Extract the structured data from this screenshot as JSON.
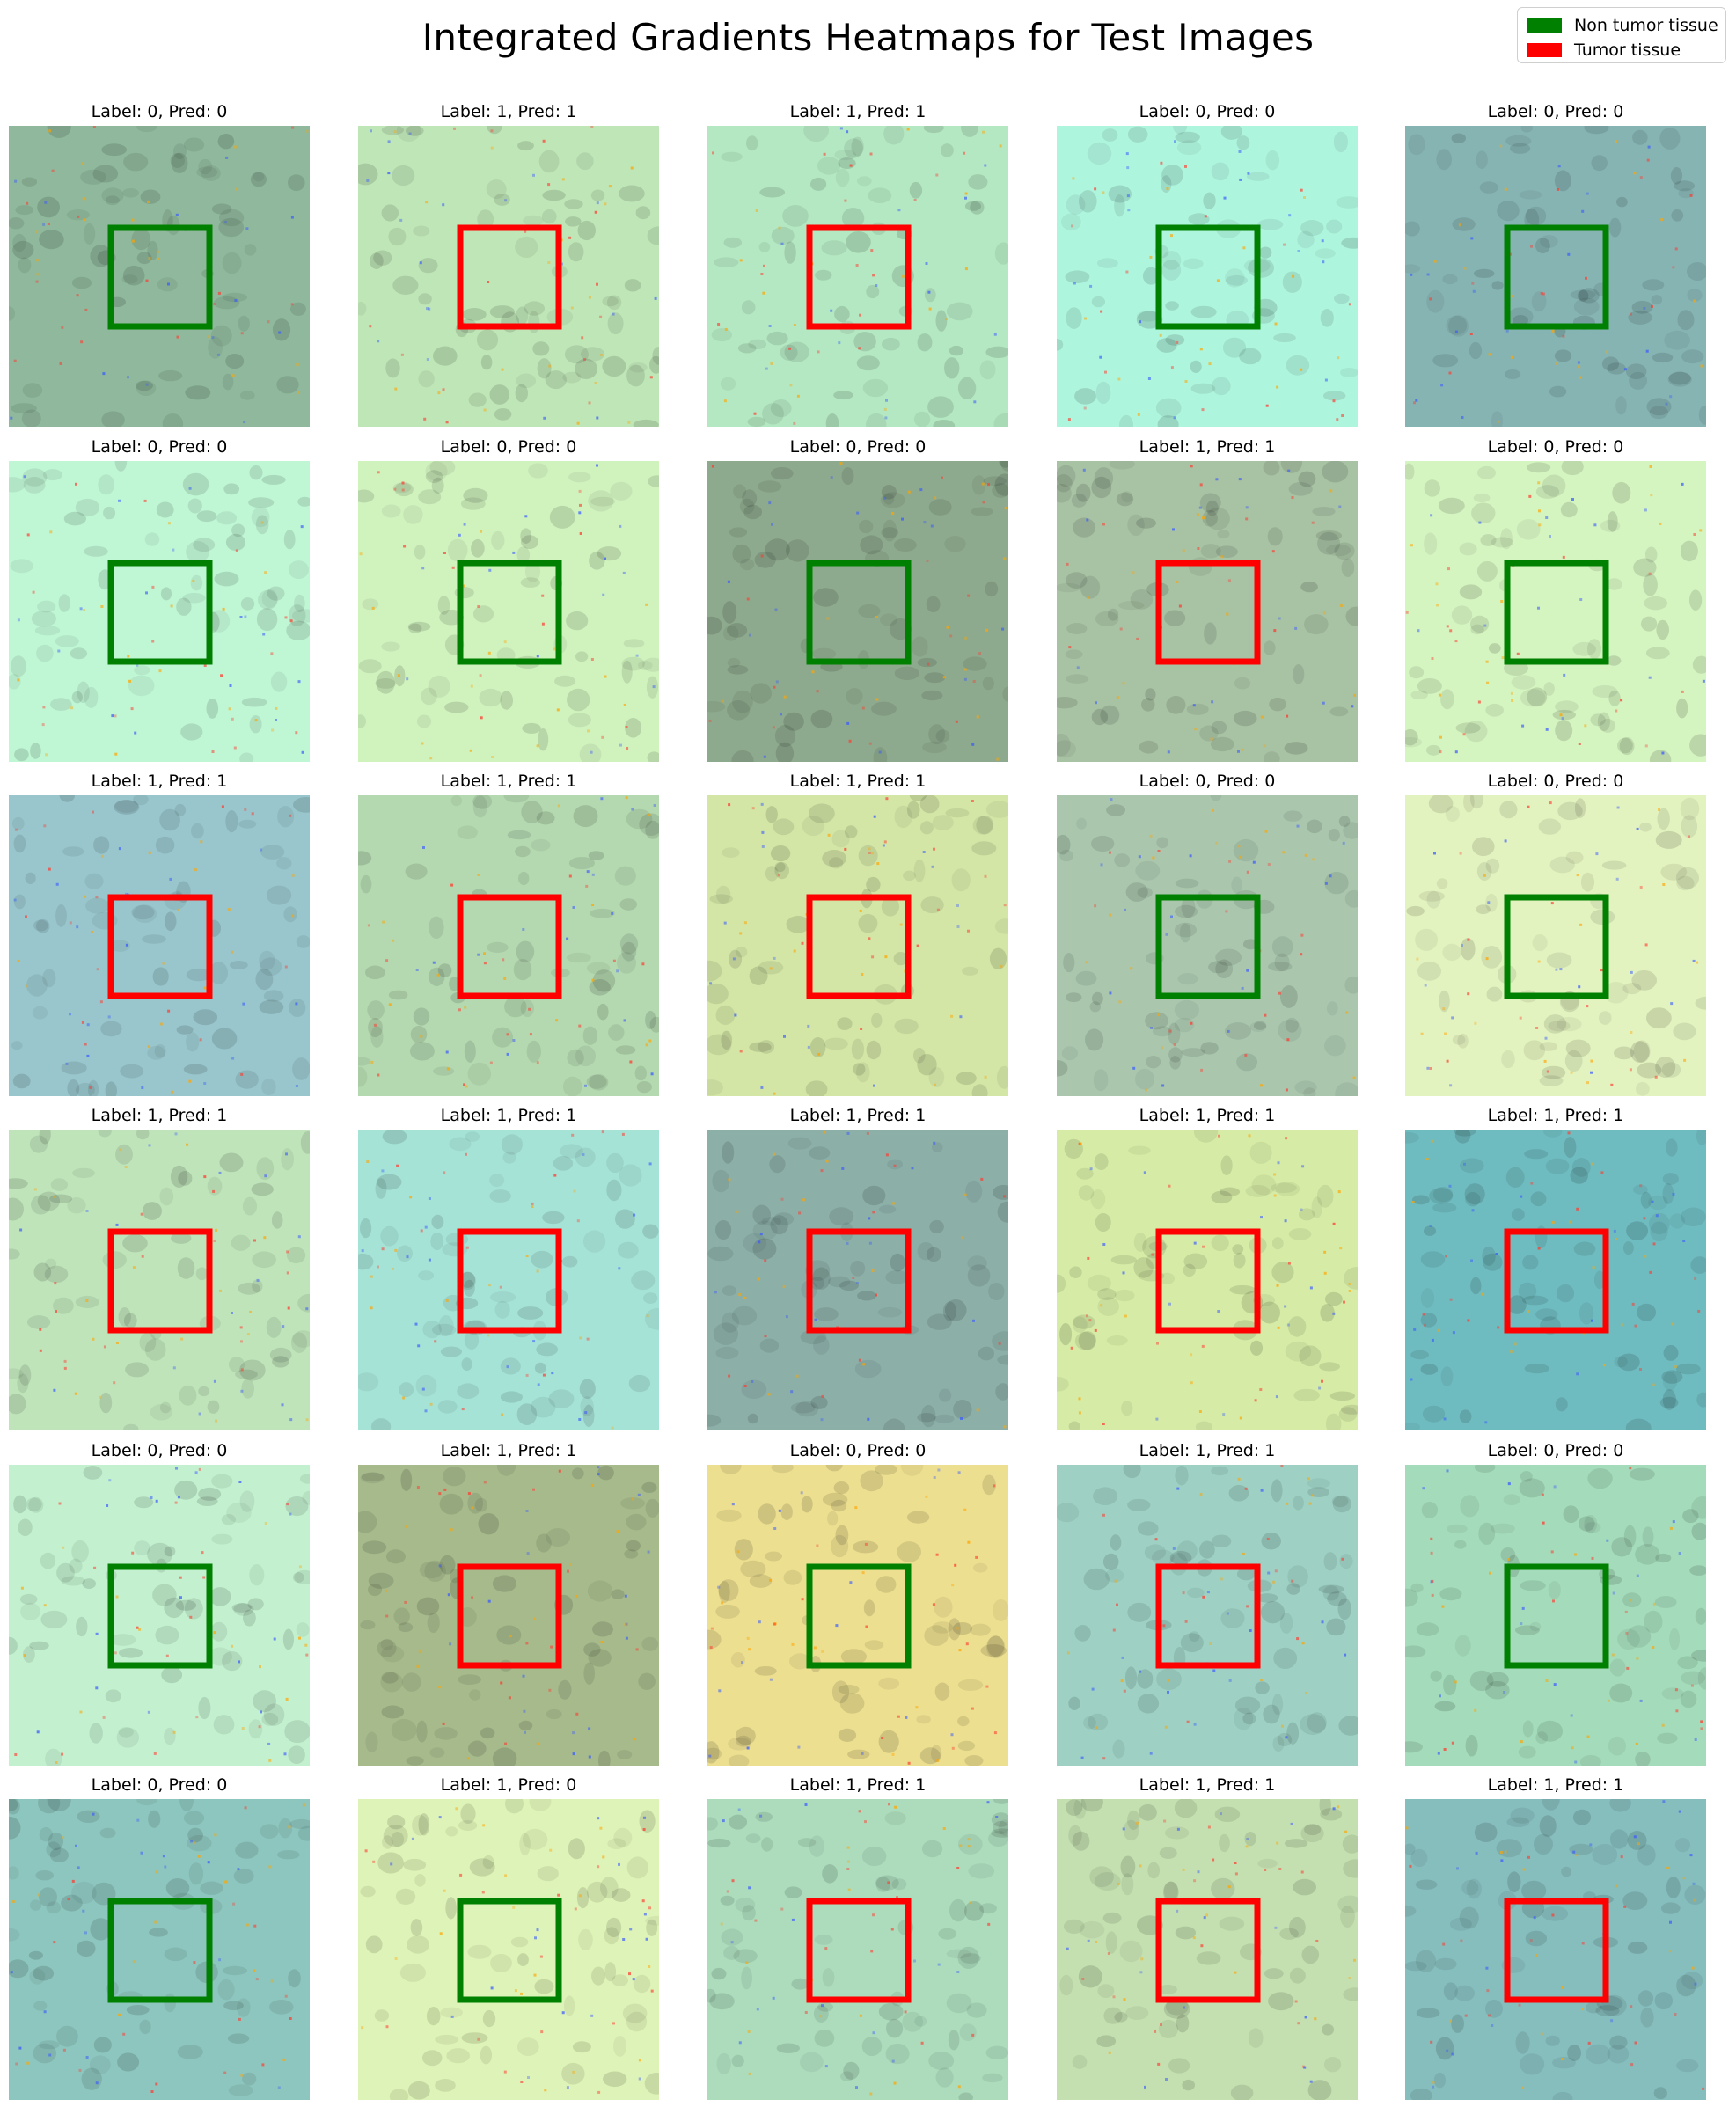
{
  "title": "Integrated Gradients Heatmaps for Test Images",
  "legend": [
    {
      "label": "Non tumor tissue",
      "color": "#008000"
    },
    {
      "label": "Tumor tissue",
      "color": "#ff0000"
    }
  ],
  "label_prefix": "Label: ",
  "pred_prefix": "Pred: ",
  "classes": {
    "0": "Non tumor tissue",
    "1": "Tumor tissue"
  },
  "panels": [
    {
      "label": "0",
      "pred": "0",
      "tint": "#8fb89c"
    },
    {
      "label": "1",
      "pred": "1",
      "tint": "#bfe6b7"
    },
    {
      "label": "1",
      "pred": "1",
      "tint": "#b4e8c2"
    },
    {
      "label": "0",
      "pred": "0",
      "tint": "#aef5de"
    },
    {
      "label": "0",
      "pred": "0",
      "tint": "#86b4b3"
    },
    {
      "label": "0",
      "pred": "0",
      "tint": "#bff6d4"
    },
    {
      "label": "0",
      "pred": "0",
      "tint": "#d0f3be"
    },
    {
      "label": "0",
      "pred": "0",
      "tint": "#8eaa8e"
    },
    {
      "label": "1",
      "pred": "1",
      "tint": "#a8c2a4"
    },
    {
      "label": "0",
      "pred": "0",
      "tint": "#d4f4c0"
    },
    {
      "label": "1",
      "pred": "1",
      "tint": "#98c6cc"
    },
    {
      "label": "1",
      "pred": "1",
      "tint": "#b4d9b0"
    },
    {
      "label": "1",
      "pred": "1",
      "tint": "#d3e6a6"
    },
    {
      "label": "0",
      "pred": "0",
      "tint": "#aac7ae"
    },
    {
      "label": "0",
      "pred": "0",
      "tint": "#e3f3bf"
    },
    {
      "label": "1",
      "pred": "1",
      "tint": "#bfe4ba"
    },
    {
      "label": "1",
      "pred": "1",
      "tint": "#a6e3d7"
    },
    {
      "label": "1",
      "pred": "1",
      "tint": "#8cafa8"
    },
    {
      "label": "1",
      "pred": "1",
      "tint": "#d6eca6"
    },
    {
      "label": "1",
      "pred": "1",
      "tint": "#6fbcc0"
    },
    {
      "label": "0",
      "pred": "0",
      "tint": "#c3f1cf"
    },
    {
      "label": "1",
      "pred": "1",
      "tint": "#a6ba8c"
    },
    {
      "label": "0",
      "pred": "0",
      "tint": "#ecdf90"
    },
    {
      "label": "1",
      "pred": "1",
      "tint": "#9ed1c4"
    },
    {
      "label": "0",
      "pred": "0",
      "tint": "#a4dbba"
    },
    {
      "label": "0",
      "pred": "0",
      "tint": "#8dc6be"
    },
    {
      "label": "1",
      "pred": "0",
      "tint": "#def3b7"
    },
    {
      "label": "1",
      "pred": "1",
      "tint": "#acdcbc"
    },
    {
      "label": "1",
      "pred": "1",
      "tint": "#c4e0b0"
    },
    {
      "label": "1",
      "pred": "1",
      "tint": "#86bdbd"
    }
  ]
}
